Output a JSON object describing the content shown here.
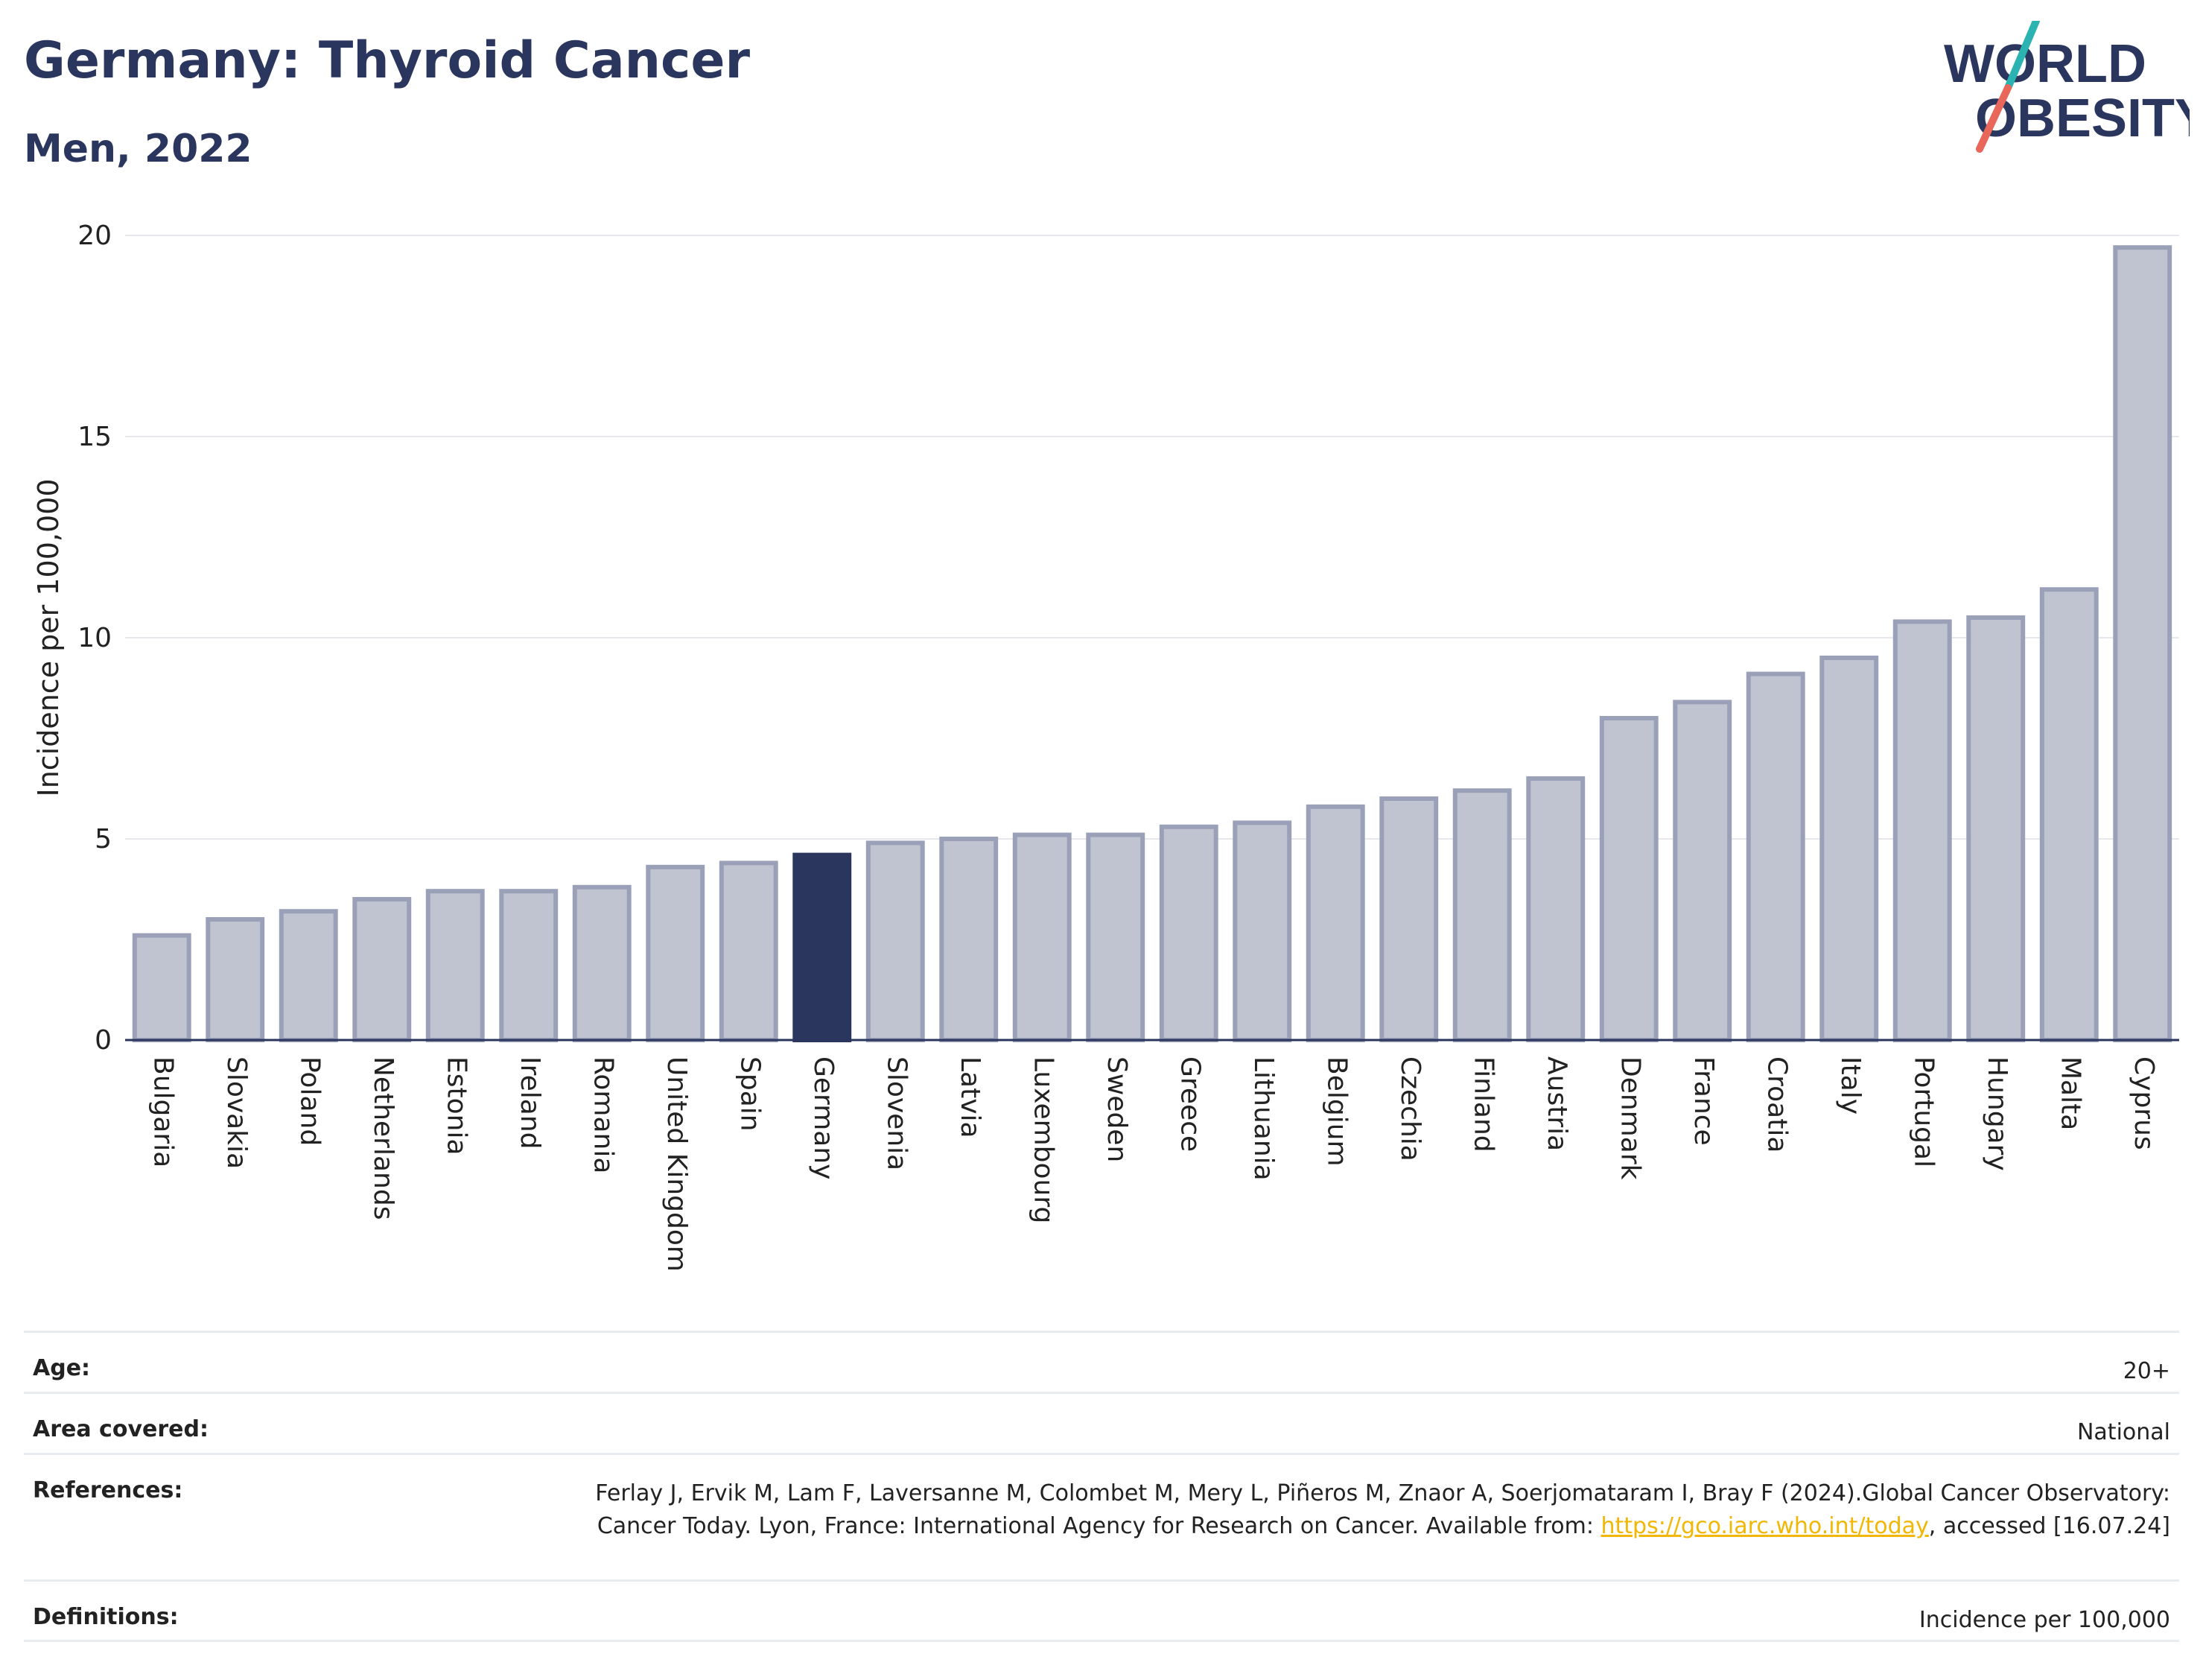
{
  "header": {
    "title": "Germany: Thyroid Cancer",
    "subtitle": "Men, 2022"
  },
  "logo": {
    "line1": "WORLD",
    "line2": "OBESITY",
    "colors": {
      "text": "#2b365f",
      "slash_top": "#2ab3b1",
      "slash_bottom": "#e8675a"
    }
  },
  "chart_data": {
    "type": "bar",
    "categories": [
      "Bulgaria",
      "Slovakia",
      "Poland",
      "Netherlands",
      "Estonia",
      "Ireland",
      "Romania",
      "United Kingdom",
      "Spain",
      "Germany",
      "Slovenia",
      "Latvia",
      "Luxembourg",
      "Sweden",
      "Greece",
      "Lithuania",
      "Belgium",
      "Czechia",
      "Finland",
      "Austria",
      "Denmark",
      "France",
      "Croatia",
      "Italy",
      "Portugal",
      "Hungary",
      "Malta",
      "Cyprus"
    ],
    "values": [
      2.6,
      3.0,
      3.2,
      3.5,
      3.7,
      3.7,
      3.8,
      4.3,
      4.4,
      4.6,
      4.9,
      5.0,
      5.1,
      5.1,
      5.3,
      5.4,
      5.8,
      6.0,
      6.2,
      6.5,
      8.0,
      8.4,
      9.1,
      9.5,
      10.4,
      10.5,
      11.2,
      19.7
    ],
    "highlight": "Germany",
    "ylabel": "Incidence per 100,000",
    "ylim": [
      0,
      20
    ],
    "yticks": [
      0,
      5,
      10,
      15,
      20
    ],
    "grid": true,
    "colors": {
      "bar": "#c0c3d0",
      "bar_edge": "#9aa0b8",
      "highlight": "#2b365f",
      "grid": "#e6e8ee"
    }
  },
  "meta": {
    "rows": [
      {
        "label": "Age:",
        "value": "20+"
      },
      {
        "label": "Area covered:",
        "value": "National"
      },
      {
        "label": "References:",
        "value_pre": "Ferlay J, Ervik M, Lam F, Laversanne M, Colombet M, Mery L, Piñeros M, Znaor A, Soerjomataram I, Bray F (2024).Global Cancer Observatory: Cancer Today. Lyon, France: International Agency for Research on Cancer. Available from: ",
        "link": "https://gco.iarc.who.int/today",
        "value_post": ", accessed [16.07.24]"
      },
      {
        "label": "Definitions:",
        "value": "Incidence per 100,000"
      }
    ]
  }
}
